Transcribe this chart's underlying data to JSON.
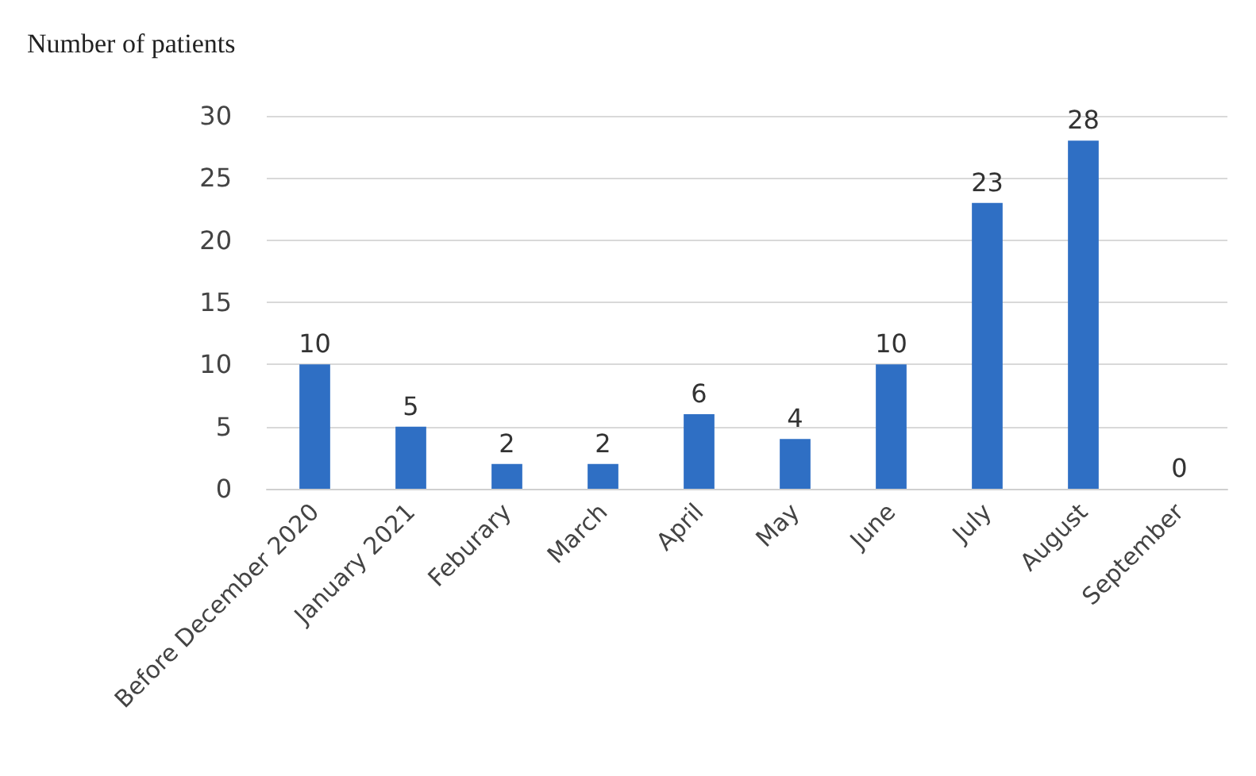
{
  "chart_data": {
    "type": "bar",
    "ylabel": "Number of patients",
    "categories": [
      "Before December 2020",
      "January 2021",
      "Feburary",
      "March",
      "April",
      "May",
      "June",
      "July",
      "August",
      "September"
    ],
    "values": [
      10,
      5,
      2,
      2,
      6,
      4,
      10,
      23,
      28,
      0
    ],
    "color": "#2f6fc4",
    "ylim": [
      0,
      30
    ],
    "yticks": [
      0,
      5,
      10,
      15,
      20,
      25,
      30
    ],
    "grid": "y",
    "data_labels": true
  }
}
